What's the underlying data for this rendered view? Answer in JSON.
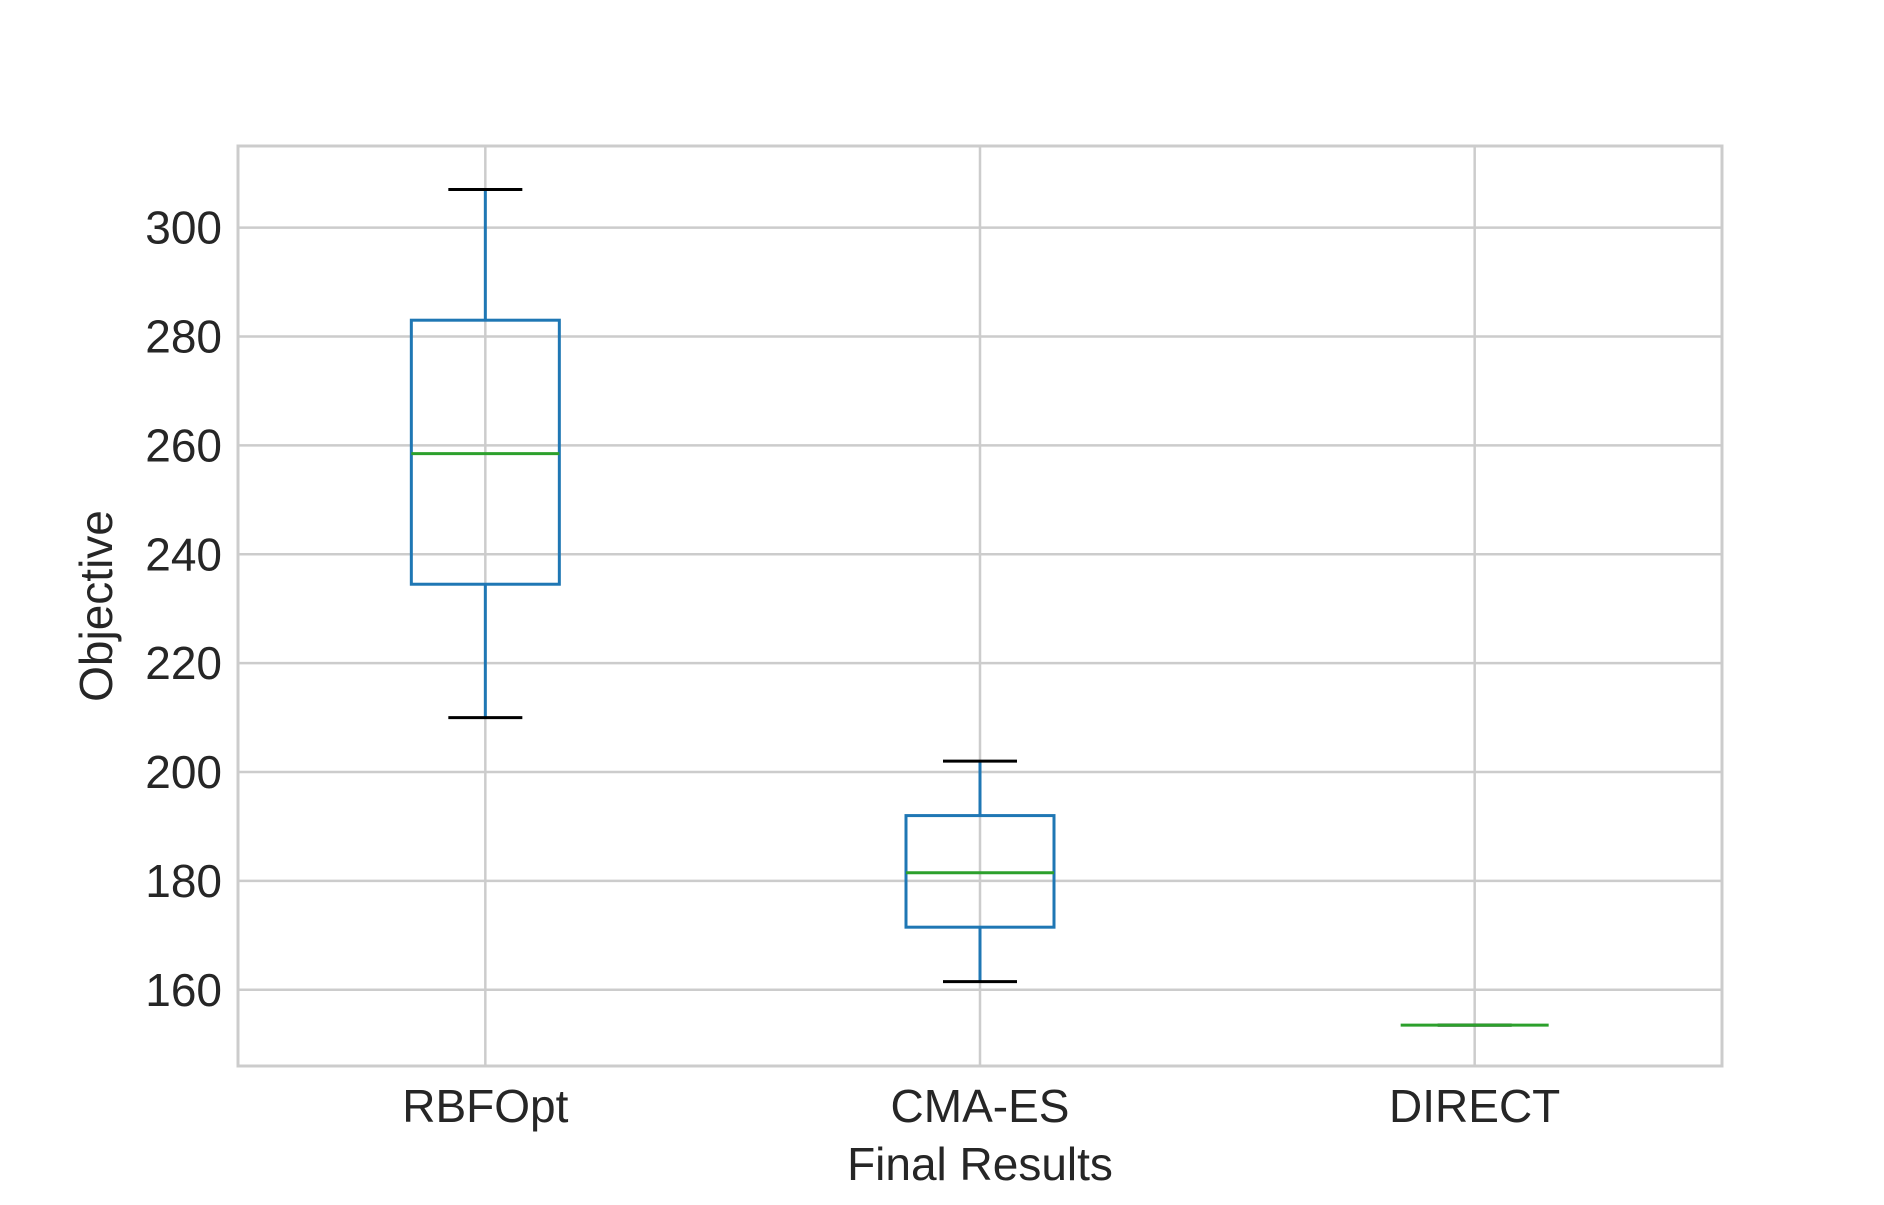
{
  "chart_data": {
    "type": "boxplot",
    "xlabel": "Final Results",
    "ylabel": "Objective",
    "categories": [
      "RBFOpt",
      "CMA-ES",
      "DIRECT"
    ],
    "boxes": [
      {
        "category": "RBFOpt",
        "whisker_low": 210,
        "q1": 234.5,
        "median": 258.5,
        "q3": 283,
        "whisker_high": 307
      },
      {
        "category": "CMA-ES",
        "whisker_low": 161.5,
        "q1": 171.5,
        "median": 181.5,
        "q3": 192,
        "whisker_high": 202
      },
      {
        "category": "DIRECT",
        "whisker_low": 153.5,
        "q1": 153.5,
        "median": 153.5,
        "q3": 153.5,
        "whisker_high": 153.5
      }
    ],
    "ylim": [
      146,
      315
    ],
    "yticks": [
      160,
      180,
      200,
      220,
      240,
      260,
      280,
      300
    ],
    "grid": true,
    "colors": {
      "box": "#1f77b4",
      "median": "#2ca02c",
      "cap": "#000000",
      "grid": "#cccccc",
      "frame": "#cccccc"
    }
  }
}
